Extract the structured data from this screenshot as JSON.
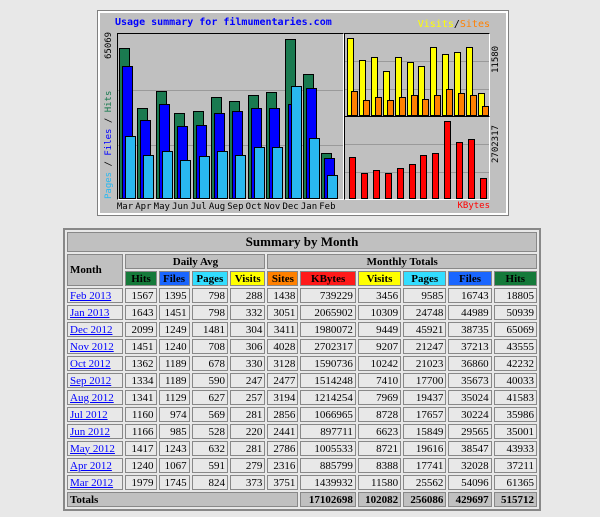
{
  "chart": {
    "title": "Usage summary for filmumentaries.com",
    "left_label_pages": "Pages",
    "left_label_files": "Files",
    "left_label_hits": "Hits",
    "sep": "/",
    "left_max": "65069",
    "visits_label": "Visits",
    "sites_label": "Sites",
    "visits_max": "11580",
    "kbytes_label": "KBytes",
    "kbytes_max": "2702317",
    "months": [
      "Mar",
      "Apr",
      "May",
      "Jun",
      "Jul",
      "Aug",
      "Sep",
      "Oct",
      "Nov",
      "Dec",
      "Jan",
      "Feb"
    ],
    "colors": {
      "hits": "#1a7a50",
      "files": "#0000ff",
      "pages": "#29b8f0",
      "visits": "#ffff00",
      "sites": "#ff8000",
      "kbytes": "#ff0000"
    }
  },
  "table": {
    "title": "Summary by Month",
    "month_header": "Month",
    "daily_avg": "Daily Avg",
    "monthly_totals": "Monthly Totals",
    "daily_cols": [
      {
        "label": "Hits",
        "color": "#157a3a"
      },
      {
        "label": "Files",
        "color": "#1a66ff"
      },
      {
        "label": "Pages",
        "color": "#33ddff"
      },
      {
        "label": "Visits",
        "color": "#ffff00"
      }
    ],
    "monthly_cols": [
      {
        "label": "Sites",
        "color": "#ff8000"
      },
      {
        "label": "KBytes",
        "color": "#ff1a1a"
      },
      {
        "label": "Visits",
        "color": "#ffff00"
      },
      {
        "label": "Pages",
        "color": "#33ddff"
      },
      {
        "label": "Files",
        "color": "#1a66ff"
      },
      {
        "label": "Hits",
        "color": "#157a3a"
      }
    ],
    "rows": [
      [
        "Feb 2013",
        "1567",
        "1395",
        "798",
        "288",
        "1438",
        "739229",
        "3456",
        "9585",
        "16743",
        "18805"
      ],
      [
        "Jan 2013",
        "1643",
        "1451",
        "798",
        "332",
        "3051",
        "2065902",
        "10309",
        "24748",
        "44989",
        "50939"
      ],
      [
        "Dec 2012",
        "2099",
        "1249",
        "1481",
        "304",
        "3411",
        "1980072",
        "9449",
        "45921",
        "38735",
        "65069"
      ],
      [
        "Nov 2012",
        "1451",
        "1240",
        "708",
        "306",
        "4028",
        "2702317",
        "9207",
        "21247",
        "37213",
        "43555"
      ],
      [
        "Oct 2012",
        "1362",
        "1189",
        "678",
        "330",
        "3128",
        "1590736",
        "10242",
        "21023",
        "36860",
        "42232"
      ],
      [
        "Sep 2012",
        "1334",
        "1189",
        "590",
        "247",
        "2477",
        "1514248",
        "7410",
        "17700",
        "35673",
        "40033"
      ],
      [
        "Aug 2012",
        "1341",
        "1129",
        "627",
        "257",
        "3194",
        "1214254",
        "7969",
        "19437",
        "35024",
        "41583"
      ],
      [
        "Jul 2012",
        "1160",
        "974",
        "569",
        "281",
        "2856",
        "1066965",
        "8728",
        "17657",
        "30224",
        "35986"
      ],
      [
        "Jun 2012",
        "1166",
        "985",
        "528",
        "220",
        "2441",
        "897711",
        "6623",
        "15849",
        "29565",
        "35001"
      ],
      [
        "May 2012",
        "1417",
        "1243",
        "632",
        "281",
        "2786",
        "1005533",
        "8721",
        "19616",
        "38547",
        "43933"
      ],
      [
        "Apr 2012",
        "1240",
        "1067",
        "591",
        "279",
        "2316",
        "885799",
        "8388",
        "17741",
        "32028",
        "37211"
      ],
      [
        "Mar 2012",
        "1979",
        "1745",
        "824",
        "373",
        "3751",
        "1439932",
        "11580",
        "25562",
        "54096",
        "61365"
      ]
    ],
    "totals_label": "Totals",
    "totals": [
      "17102698",
      "102082",
      "256086",
      "429697",
      "515712"
    ]
  }
}
